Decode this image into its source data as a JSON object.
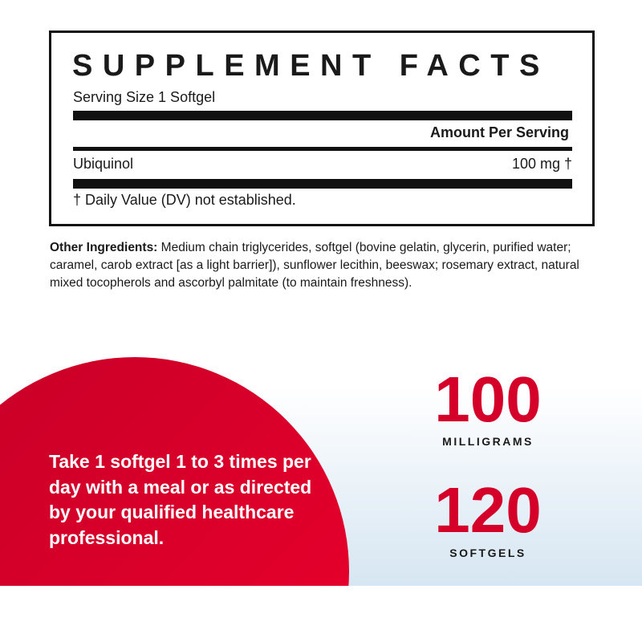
{
  "facts": {
    "title": "SUPPLEMENT FACTS",
    "serving_size": "Serving Size 1 Softgel",
    "amount_header": "Amount Per Serving",
    "ingredient": "Ubiquinol",
    "amount": "100 mg †",
    "footnote": "† Daily Value (DV) not established."
  },
  "other": {
    "label": "Other Ingredients:",
    "text": " Medium chain triglycerides, softgel (bovine gelatin, glycerin, purified water; caramel, carob extract [as a light barrier]), sunflower lecithin, beeswax; rosemary extract, natural mixed tocopherols and ascorbyl palmitate (to maintain freshness)."
  },
  "directions": "Take 1 softgel 1 to 3 times per day with a meal or as directed by your qualified healthcare professional.",
  "stats": [
    {
      "value": "100",
      "label": "MILLIGRAMS"
    },
    {
      "value": "120",
      "label": "SOFTGELS"
    }
  ],
  "colors": {
    "accent": "#d4002a",
    "band_bottom": "#d6e6f2"
  }
}
